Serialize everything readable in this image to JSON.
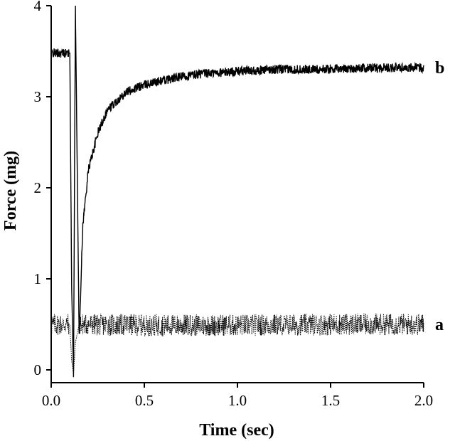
{
  "chart_data": {
    "type": "line",
    "title": "",
    "xlabel": "Time (sec)",
    "ylabel": "Force (mg)",
    "xlim": [
      0.0,
      2.0
    ],
    "ylim": [
      0,
      4
    ],
    "xticks": [
      "0.0",
      "0.5",
      "1.0",
      "1.5",
      "2.0"
    ],
    "yticks": [
      "0",
      "1",
      "2",
      "3",
      "4"
    ],
    "grid": false,
    "legend": "none",
    "series": [
      {
        "name": "b",
        "style": "solid",
        "color": "#000000",
        "x": [
          0.0,
          0.04,
          0.1,
          0.11,
          0.12,
          0.125,
          0.13,
          0.15,
          0.17,
          0.2,
          0.25,
          0.3,
          0.4,
          0.5,
          0.6,
          0.7,
          0.8,
          1.0,
          1.2,
          1.4,
          1.6,
          1.8,
          2.0
        ],
        "values": [
          3.48,
          3.48,
          3.48,
          0.9,
          -0.08,
          2.0,
          4.0,
          0.35,
          1.6,
          2.2,
          2.6,
          2.85,
          3.05,
          3.13,
          3.18,
          3.22,
          3.25,
          3.28,
          3.3,
          3.3,
          3.31,
          3.32,
          3.32
        ]
      },
      {
        "name": "a",
        "style": "dotted",
        "color": "#000000",
        "x": [
          0.0,
          0.1,
          0.11,
          0.12,
          0.13,
          0.15,
          0.5,
          1.0,
          1.5,
          2.0
        ],
        "values": [
          0.5,
          0.5,
          0.1,
          -0.05,
          0.3,
          0.5,
          0.49,
          0.49,
          0.5,
          0.5
        ]
      }
    ]
  }
}
